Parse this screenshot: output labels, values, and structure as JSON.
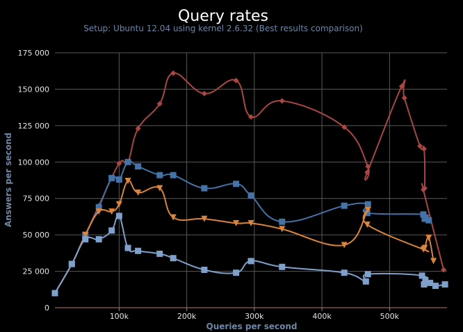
{
  "chart_data": {
    "type": "line",
    "title": "Query rates",
    "subtitle": "Setup: Ubuntu 12.04 using kernel 2.6.32 (Best results comparison)",
    "xlabel": "Queries per second",
    "ylabel": "Answers per second",
    "xlim": [
      5000,
      585000
    ],
    "ylim": [
      0,
      175000
    ],
    "x_ticks": [
      100000,
      200000,
      300000,
      400000,
      500000
    ],
    "x_tick_labels": [
      "100k",
      "200k",
      "300k",
      "400k",
      "500k"
    ],
    "y_ticks": [
      0,
      25000,
      50000,
      75000,
      100000,
      125000,
      150000,
      175000
    ],
    "y_tick_labels": [
      "0",
      "25 000",
      "50 000",
      "75 000",
      "100 000",
      "125 000",
      "150 000",
      "175 000"
    ],
    "grid": true,
    "legend": "none",
    "series": [
      {
        "color": "#aa4643",
        "marker": "diamond",
        "points": [
          [
            5000,
            10000
          ],
          [
            30000,
            30000
          ],
          [
            50000,
            50000
          ],
          [
            70000,
            70000
          ],
          [
            100000,
            99000
          ],
          [
            113000,
            100000
          ],
          [
            128000,
            123000
          ],
          [
            160000,
            140000
          ],
          [
            180000,
            161000
          ],
          [
            226000,
            147000
          ],
          [
            273000,
            156000
          ],
          [
            295000,
            131000
          ],
          [
            341000,
            142000
          ],
          [
            433000,
            124000
          ],
          [
            468000,
            97000
          ],
          [
            467000,
            93000
          ],
          [
            518000,
            152000
          ],
          [
            522000,
            144000
          ],
          [
            545000,
            111000
          ],
          [
            551000,
            109000
          ],
          [
            552000,
            82000
          ],
          [
            550000,
            81000
          ],
          [
            580000,
            26000
          ]
        ]
      },
      {
        "color": "#4572a7",
        "marker": "square",
        "points": [
          [
            5000,
            10000
          ],
          [
            30000,
            30000
          ],
          [
            50000,
            50000
          ],
          [
            70000,
            69000
          ],
          [
            89000,
            89000
          ],
          [
            100000,
            88000
          ],
          [
            113000,
            100000
          ],
          [
            128000,
            97000
          ],
          [
            160000,
            91000
          ],
          [
            180000,
            91000
          ],
          [
            226000,
            82000
          ],
          [
            273000,
            85000
          ],
          [
            295000,
            77000
          ],
          [
            341000,
            59000
          ],
          [
            433000,
            70000
          ],
          [
            468000,
            71000
          ],
          [
            467000,
            65000
          ],
          [
            550000,
            64000
          ],
          [
            552000,
            61000
          ],
          [
            558000,
            60000
          ]
        ]
      },
      {
        "color": "#db843d",
        "marker": "triangle-down",
        "points": [
          [
            5000,
            10000
          ],
          [
            30000,
            30000
          ],
          [
            50000,
            50000
          ],
          [
            70000,
            66000
          ],
          [
            89000,
            66000
          ],
          [
            100000,
            71000
          ],
          [
            113000,
            87000
          ],
          [
            128000,
            79000
          ],
          [
            160000,
            82000
          ],
          [
            180000,
            62000
          ],
          [
            226000,
            61000
          ],
          [
            273000,
            58000
          ],
          [
            295000,
            58000
          ],
          [
            341000,
            54000
          ],
          [
            433000,
            43000
          ],
          [
            468000,
            67000
          ],
          [
            467000,
            57000
          ],
          [
            550000,
            40000
          ],
          [
            552000,
            41000
          ],
          [
            558000,
            48000
          ],
          [
            565000,
            32000
          ]
        ]
      },
      {
        "color": "#80a0cc",
        "marker": "square",
        "points": [
          [
            5000,
            10000
          ],
          [
            30000,
            30000
          ],
          [
            50000,
            47000
          ],
          [
            70000,
            47000
          ],
          [
            89000,
            53000
          ],
          [
            100000,
            63000
          ],
          [
            113000,
            41000
          ],
          [
            128000,
            39000
          ],
          [
            160000,
            37000
          ],
          [
            180000,
            34000
          ],
          [
            226000,
            26000
          ],
          [
            273000,
            24000
          ],
          [
            295000,
            32000
          ],
          [
            341000,
            28000
          ],
          [
            433000,
            24000
          ],
          [
            465000,
            18000
          ],
          [
            468000,
            23000
          ],
          [
            548000,
            22000
          ],
          [
            551000,
            16000
          ],
          [
            553000,
            19000
          ],
          [
            560000,
            17000
          ],
          [
            568000,
            15000
          ],
          [
            582000,
            16000
          ]
        ]
      }
    ]
  }
}
